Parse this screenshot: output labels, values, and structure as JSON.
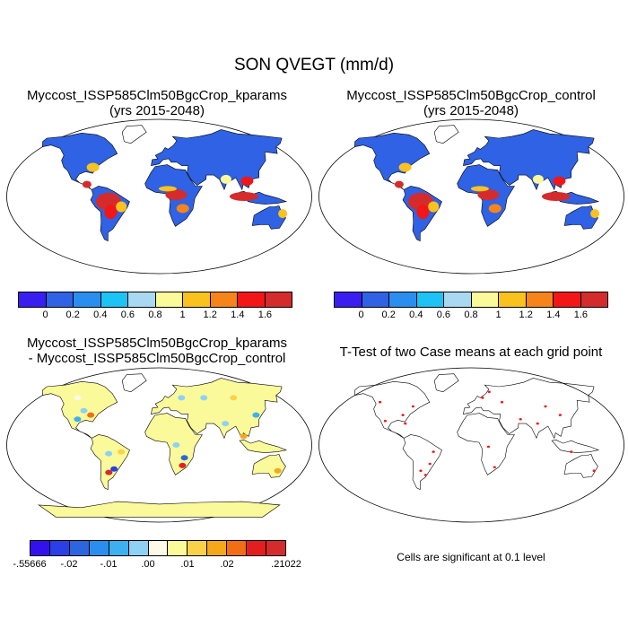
{
  "title": "SON QVEGT (mm/d)",
  "panels": [
    {
      "title_line1": "Myccost_ISSP585Clm50BgcCrop_kparams",
      "title_line2": "(yrs 2015-2048)"
    },
    {
      "title_line1": "Myccost_ISSP585Clm50BgcCrop_control",
      "title_line2": "(yrs 2015-2048)"
    },
    {
      "title_line1": "Myccost_ISSP585Clm50BgcCrop_kparams",
      "title_line2": "- Myccost_ISSP585Clm50BgcCrop_control"
    },
    {
      "title_line1": "T-Test of two Case means at each grid point",
      "title_line2": ""
    }
  ],
  "colorbar_abs": {
    "colors": [
      "#3a1ef0",
      "#2f62e4",
      "#2a8ef0",
      "#1dc3f5",
      "#a9d9f2",
      "#fafa9a",
      "#fac21e",
      "#f7841a",
      "#f21616",
      "#d42c2c"
    ],
    "labels": [
      "0",
      "0.2",
      "0.4",
      "0.6",
      "0.8",
      "1",
      "1.2",
      "1.4",
      "1.6"
    ]
  },
  "colorbar_diff": {
    "colors": [
      "#3311ee",
      "#2a40e6",
      "#2c66de",
      "#2a8ef0",
      "#3cb0f0",
      "#8fd0f5",
      "#fafae6",
      "#fafa9a",
      "#fad24a",
      "#f5a81a",
      "#f26e15",
      "#e41e1e",
      "#d42c2c"
    ],
    "labels": [
      "-.55666",
      "-.02",
      "-.01",
      ".00",
      ".01",
      ".02",
      ".21022"
    ]
  },
  "significance_note": "Cells are significant at 0.1 level"
}
